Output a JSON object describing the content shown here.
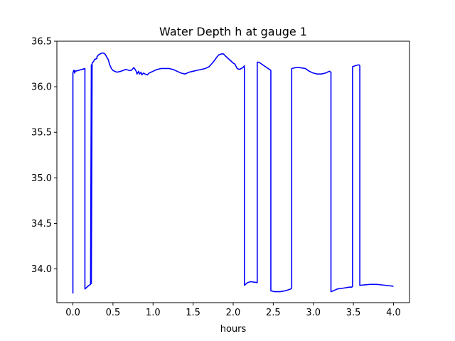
{
  "chart_data": {
    "type": "line",
    "title": "Water Depth h at gauge 1",
    "xlabel": "hours",
    "ylabel": "",
    "xlim": [
      -0.2,
      4.2
    ],
    "ylim": [
      33.63,
      36.5
    ],
    "xticks": [
      0.0,
      0.5,
      1.0,
      1.5,
      2.0,
      2.5,
      3.0,
      3.5,
      4.0
    ],
    "xtick_labels": [
      "0.0",
      "0.5",
      "1.0",
      "1.5",
      "2.0",
      "2.5",
      "3.0",
      "3.5",
      "4.0"
    ],
    "yticks": [
      34.0,
      34.5,
      35.0,
      35.5,
      36.0,
      36.5
    ],
    "ytick_labels": [
      "34.0",
      "34.5",
      "35.0",
      "35.5",
      "36.0",
      "36.5"
    ],
    "grid": false,
    "series": [
      {
        "color": "#0000ff",
        "x": [
          0.0,
          0.0,
          0.01,
          0.02,
          0.02,
          0.03,
          0.15,
          0.15,
          0.2,
          0.22,
          0.23,
          0.23,
          0.24,
          0.25,
          0.26,
          0.27,
          0.3,
          0.3,
          0.32,
          0.34,
          0.36,
          0.38,
          0.4,
          0.42,
          0.44,
          0.46,
          0.48,
          0.5,
          0.52,
          0.55,
          0.6,
          0.63,
          0.66,
          0.7,
          0.73,
          0.76,
          0.77,
          0.79,
          0.8,
          0.82,
          0.83,
          0.85,
          0.86,
          0.88,
          0.9,
          0.93,
          0.95,
          1.0,
          1.05,
          1.1,
          1.15,
          1.2,
          1.25,
          1.3,
          1.35,
          1.4,
          1.45,
          1.5,
          1.55,
          1.6,
          1.65,
          1.7,
          1.75,
          1.8,
          1.82,
          1.85,
          1.88,
          1.9,
          1.95,
          2.0,
          2.02,
          2.05,
          2.08,
          2.12,
          2.14,
          2.14,
          2.18,
          2.22,
          2.3,
          2.3,
          2.32,
          2.47,
          2.47,
          2.52,
          2.58,
          2.65,
          2.72,
          2.73,
          2.73,
          2.78,
          2.83,
          2.9,
          2.95,
          3.0,
          3.05,
          3.1,
          3.15,
          3.2,
          3.22,
          3.22,
          3.25,
          3.3,
          3.38,
          3.45,
          3.48,
          3.49,
          3.49,
          3.52,
          3.56,
          3.57,
          3.58,
          3.58,
          3.7,
          3.8,
          3.9,
          4.0
        ],
        "y": [
          33.73,
          36.15,
          36.18,
          36.18,
          36.15,
          36.17,
          36.2,
          33.78,
          33.82,
          33.83,
          36.24,
          33.84,
          36.26,
          36.27,
          36.28,
          36.3,
          36.31,
          36.33,
          36.35,
          36.36,
          36.37,
          36.37,
          36.36,
          36.33,
          36.3,
          36.24,
          36.2,
          36.18,
          36.17,
          36.16,
          36.17,
          36.18,
          36.19,
          36.18,
          36.18,
          36.21,
          36.2,
          36.17,
          36.14,
          36.17,
          36.14,
          36.16,
          36.13,
          36.15,
          36.14,
          36.13,
          36.15,
          36.17,
          36.19,
          36.2,
          36.2,
          36.2,
          36.19,
          36.17,
          36.15,
          36.14,
          36.16,
          36.17,
          36.18,
          36.19,
          36.2,
          36.22,
          36.27,
          36.33,
          36.35,
          36.36,
          36.36,
          36.34,
          36.3,
          36.26,
          36.25,
          36.2,
          36.19,
          36.21,
          36.23,
          33.82,
          33.85,
          33.86,
          33.85,
          36.27,
          36.27,
          36.18,
          33.76,
          33.75,
          33.75,
          33.76,
          33.78,
          33.79,
          36.2,
          36.21,
          36.21,
          36.2,
          36.17,
          36.15,
          36.14,
          36.14,
          36.15,
          36.17,
          36.16,
          33.75,
          33.76,
          33.78,
          33.79,
          33.8,
          33.8,
          33.81,
          36.22,
          36.23,
          36.24,
          36.24,
          36.23,
          33.82,
          33.83,
          33.83,
          33.82,
          33.81
        ]
      }
    ]
  }
}
